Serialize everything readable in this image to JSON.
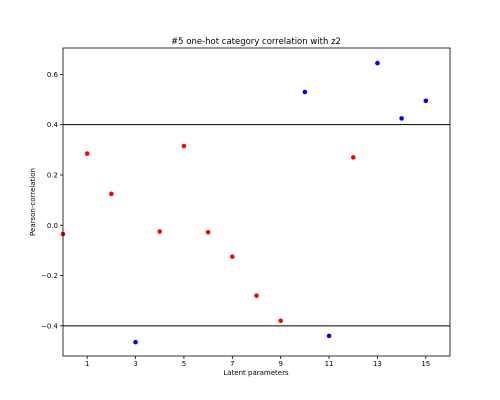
{
  "chart_data": {
    "type": "scatter",
    "title": "#5 one-hot category correlation with z2",
    "xlabel": "Latent parameters",
    "ylabel": "Pearson-correlation",
    "xlim": [
      0,
      16
    ],
    "ylim": [
      -0.52,
      0.705
    ],
    "xticks": [
      1,
      3,
      5,
      7,
      9,
      11,
      13,
      15
    ],
    "yticks": [
      -0.4,
      -0.2,
      0.0,
      0.2,
      0.4,
      0.6
    ],
    "ytick_labels": [
      "−0.4",
      "−0.2",
      "0.0",
      "0.2",
      "0.4",
      "0.6"
    ],
    "grid": false,
    "threshold_lines": [
      0.4,
      -0.4
    ],
    "threshold_color": "#000000",
    "series": [
      {
        "color": "#ff0000",
        "points": [
          {
            "x": 0,
            "y": -0.035
          },
          {
            "x": 1,
            "y": 0.285
          },
          {
            "x": 2,
            "y": 0.125
          },
          {
            "x": 4,
            "y": -0.025
          },
          {
            "x": 5,
            "y": 0.315
          },
          {
            "x": 6,
            "y": -0.028
          },
          {
            "x": 7,
            "y": -0.125
          },
          {
            "x": 8,
            "y": -0.28
          },
          {
            "x": 9,
            "y": -0.38
          },
          {
            "x": 12,
            "y": 0.27
          }
        ]
      },
      {
        "color": "#0000ff",
        "points": [
          {
            "x": 3,
            "y": -0.465
          },
          {
            "x": 10,
            "y": 0.53
          },
          {
            "x": 11,
            "y": -0.44
          },
          {
            "x": 13,
            "y": 0.645
          },
          {
            "x": 14,
            "y": 0.425
          },
          {
            "x": 15,
            "y": 0.495
          }
        ]
      }
    ]
  }
}
